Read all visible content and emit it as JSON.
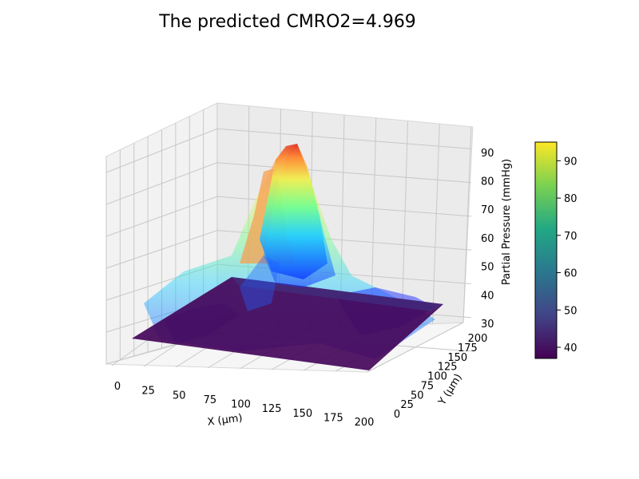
{
  "chart_data": {
    "type": "surface3d",
    "title": "The predicted CMRO2=4.969",
    "xlabel": "X (μm)",
    "ylabel": "Y (μm)",
    "zlabel": "Partial Pressure (mmHg)",
    "xlim": [
      0,
      200
    ],
    "ylim": [
      0,
      200
    ],
    "zlim": [
      30,
      95
    ],
    "x_ticks": [
      "0",
      "25",
      "50",
      "75",
      "100",
      "125",
      "150",
      "175",
      "200"
    ],
    "y_ticks": [
      "0",
      "25",
      "50",
      "75",
      "100",
      "125",
      "150",
      "175",
      "200"
    ],
    "z_ticks": [
      "30",
      "40",
      "50",
      "60",
      "70",
      "80",
      "90"
    ],
    "colorbar": {
      "range": [
        37,
        95
      ],
      "ticks": [
        "40",
        "50",
        "60",
        "70",
        "80",
        "90"
      ],
      "colormap": "viridis"
    },
    "series": [
      {
        "surface": "measured",
        "colormap": "jet",
        "peak": {
          "x": 110,
          "y": 120,
          "z": 94
        },
        "base_level": 36
      },
      {
        "surface": "predicted",
        "colormap": "viridis",
        "level": 37
      }
    ],
    "grid": true
  }
}
